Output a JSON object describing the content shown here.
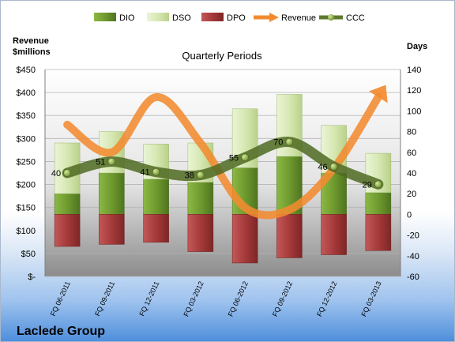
{
  "chart_data": {
    "type": "bar",
    "title": "Quarterly Periods",
    "company": "Laclede Group",
    "left_axis_label": "Revenue\n$millions",
    "right_axis_label": "Days",
    "left_axis_ticks": [
      "$-",
      "$50",
      "$100",
      "$150",
      "$200",
      "$250",
      "$300",
      "$350",
      "$400",
      "$450"
    ],
    "left_ylim": [
      0,
      450
    ],
    "right_ylim": [
      -60,
      140
    ],
    "right_axis_ticks": [
      "-60",
      "-40",
      "-20",
      "0",
      "20",
      "40",
      "60",
      "80",
      "100",
      "120",
      "140"
    ],
    "categories": [
      "FQ 06-2011",
      "FQ 09-2011",
      "FQ 12-2011",
      "FQ 03-2012",
      "FQ 06-2012",
      "FQ 09-2012",
      "FQ 12-2012",
      "FQ 03-2013"
    ],
    "legend_position": "top",
    "series": [
      {
        "name": "DIO",
        "axis": "right",
        "kind": "stacked-bar",
        "values": [
          20,
          40,
          34,
          31,
          45,
          56,
          40,
          21
        ],
        "color": "#6f9a2e"
      },
      {
        "name": "DSO",
        "axis": "right",
        "kind": "stacked-bar",
        "values": [
          49,
          40,
          34,
          38,
          57,
          60,
          46,
          38
        ],
        "color": "#d7e8b3"
      },
      {
        "name": "DPO",
        "axis": "right",
        "kind": "negative-bar",
        "values": [
          -31,
          -29,
          -27,
          -36,
          -47,
          -42,
          -39,
          -35
        ],
        "color": "#a63a3a"
      },
      {
        "name": "Revenue",
        "axis": "left",
        "kind": "smooth-line",
        "values": [
          330,
          270,
          390,
          290,
          150,
          145,
          235,
          390
        ],
        "color": "#f28b30"
      },
      {
        "name": "CCC",
        "axis": "right",
        "kind": "smooth-line-markers",
        "values": [
          40,
          51,
          41,
          38,
          55,
          70,
          46,
          29
        ],
        "labels": [
          "40",
          "51",
          "41",
          "38",
          "55",
          "70",
          "46",
          "29"
        ],
        "color": "#5f7a2c"
      }
    ]
  }
}
